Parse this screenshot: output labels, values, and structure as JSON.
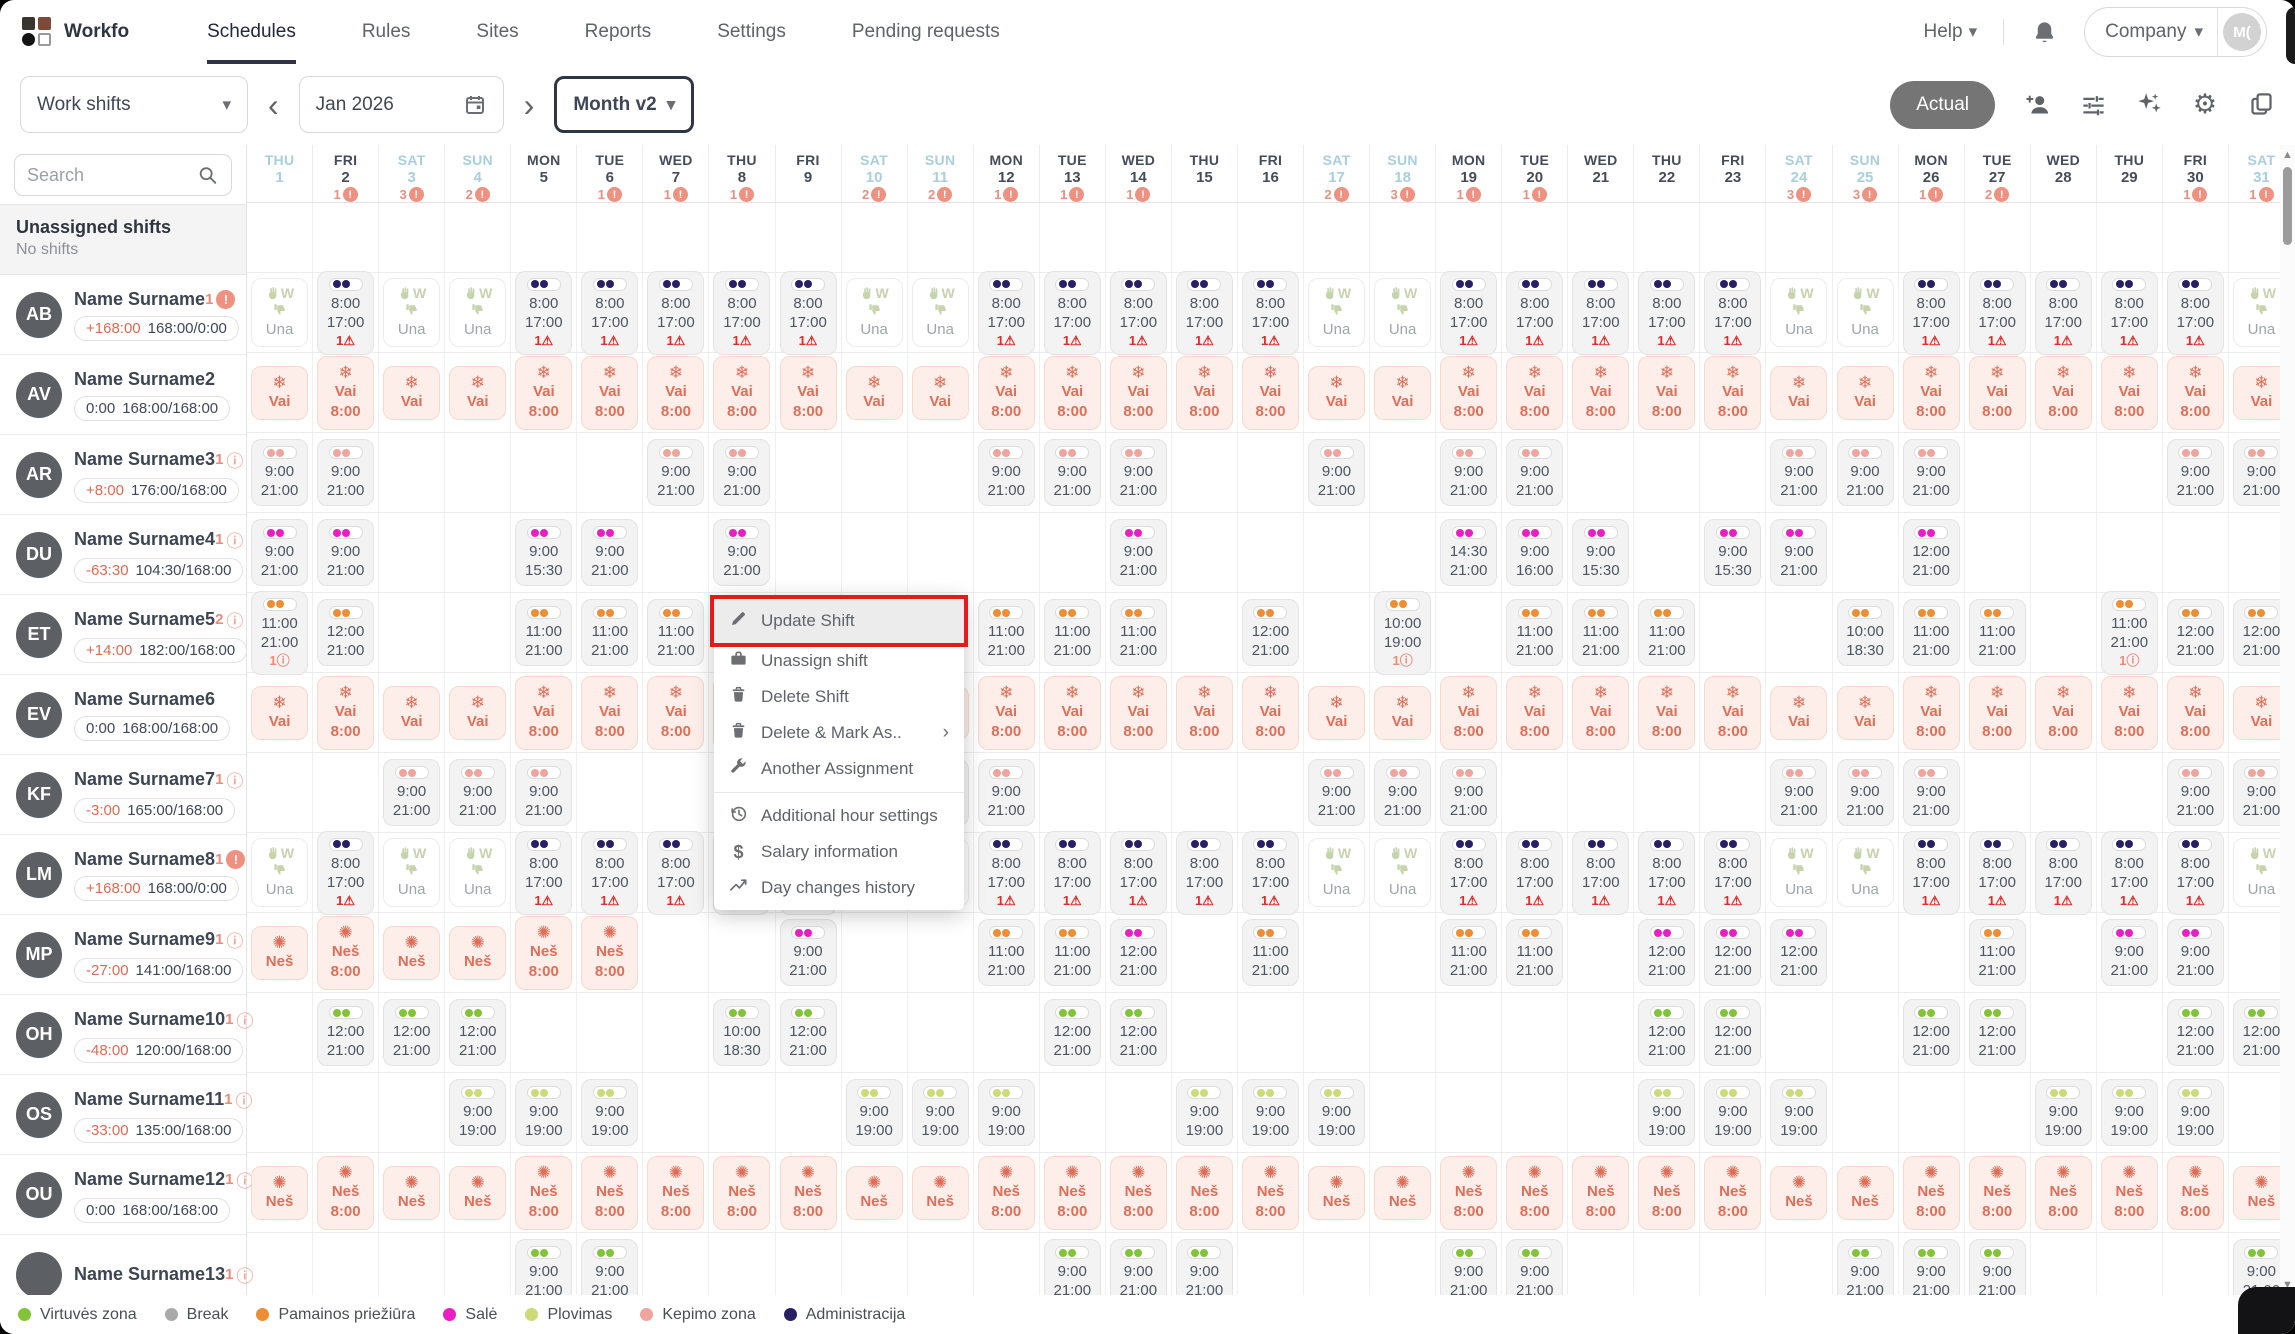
{
  "nav": {
    "brand": "Workfo",
    "items": [
      {
        "label": "Schedules",
        "active": true
      },
      {
        "label": "Rules",
        "active": false
      },
      {
        "label": "Sites",
        "active": false
      },
      {
        "label": "Reports",
        "active": false
      },
      {
        "label": "Settings",
        "active": false
      },
      {
        "label": "Pending requests",
        "active": false
      }
    ],
    "help_label": "Help",
    "company_label": "Company",
    "avatar_initials": "M("
  },
  "toolbar": {
    "schedule_type": "Work shifts",
    "period": "Jan 2026",
    "view_mode": "Month v2",
    "actual_label": "Actual"
  },
  "sidebar": {
    "search_placeholder": "Search",
    "unassigned_title": "Unassigned shifts",
    "unassigned_sub": "No shifts",
    "employees": [
      {
        "init": "AB",
        "name": "Name Surname",
        "badge": "1",
        "btype": "alert",
        "delta": "+168:00",
        "hours": "168:00/0:00",
        "dred": true
      },
      {
        "init": "AV",
        "name": "Name Surname2",
        "badge": "",
        "btype": "",
        "delta": "0:00",
        "hours": "168:00/168:00",
        "dred": false
      },
      {
        "init": "AR",
        "name": "Name Surname3",
        "badge": "1",
        "btype": "info",
        "delta": "+8:00",
        "hours": "176:00/168:00",
        "dred": true
      },
      {
        "init": "DU",
        "name": "Name Surname4",
        "badge": "1",
        "btype": "info",
        "delta": "-63:30",
        "hours": "104:30/168:00",
        "dred": true
      },
      {
        "init": "ET",
        "name": "Name Surname5",
        "badge": "2",
        "btype": "info",
        "delta": "+14:00",
        "hours": "182:00/168:00",
        "dred": true
      },
      {
        "init": "EV",
        "name": "Name Surname6",
        "badge": "",
        "btype": "",
        "delta": "0:00",
        "hours": "168:00/168:00",
        "dred": false
      },
      {
        "init": "KF",
        "name": "Name Surname7",
        "badge": "1",
        "btype": "info",
        "delta": "-3:00",
        "hours": "165:00/168:00",
        "dred": true
      },
      {
        "init": "LM",
        "name": "Name Surname8",
        "badge": "1",
        "btype": "alert",
        "delta": "+168:00",
        "hours": "168:00/0:00",
        "dred": true
      },
      {
        "init": "MP",
        "name": "Name Surname9",
        "badge": "1",
        "btype": "info",
        "delta": "-27:00",
        "hours": "141:00/168:00",
        "dred": true
      },
      {
        "init": "OH",
        "name": "Name Surname10",
        "badge": "1",
        "btype": "info",
        "delta": "-48:00",
        "hours": "120:00/168:00",
        "dred": true
      },
      {
        "init": "OS",
        "name": "Name Surname11",
        "badge": "1",
        "btype": "info",
        "delta": "-33:00",
        "hours": "135:00/168:00",
        "dred": true
      },
      {
        "init": "OU",
        "name": "Name Surname12",
        "badge": "1",
        "btype": "info",
        "delta": "0:00",
        "hours": "168:00/168:00",
        "dred": false
      },
      {
        "init": "",
        "name": "Name Surname13",
        "badge": "1",
        "btype": "info"
      }
    ]
  },
  "zones": {
    "virtuves": "#82c437",
    "break": "#a9a9a9",
    "pamainos": "#ee8d33",
    "sale": "#e91fc3",
    "plovimas": "#ccdb78",
    "kepimo": "#f0a49e",
    "administracija": "#291f63"
  },
  "strings": {
    "una": "Una",
    "una_w": "W",
    "warn_glyph": "⚠",
    "info_glyph": "ⓘ",
    "snow": "❄",
    "virus": "✺"
  },
  "calendar": {
    "weekend_days": [
      1,
      3,
      4,
      10,
      11,
      17,
      18,
      24,
      25,
      31
    ],
    "days": [
      {
        "n": "1",
        "dow": "THU",
        "warn": null
      },
      {
        "n": "2",
        "dow": "FRI",
        "warn": "1"
      },
      {
        "n": "3",
        "dow": "SAT",
        "warn": "3"
      },
      {
        "n": "4",
        "dow": "SUN",
        "warn": "2"
      },
      {
        "n": "5",
        "dow": "MON",
        "warn": null
      },
      {
        "n": "6",
        "dow": "TUE",
        "warn": "1"
      },
      {
        "n": "7",
        "dow": "WED",
        "warn": "1"
      },
      {
        "n": "8",
        "dow": "THU",
        "warn": "1"
      },
      {
        "n": "9",
        "dow": "FRI",
        "warn": null
      },
      {
        "n": "10",
        "dow": "SAT",
        "warn": "2"
      },
      {
        "n": "11",
        "dow": "SUN",
        "warn": "2"
      },
      {
        "n": "12",
        "dow": "MON",
        "warn": "1"
      },
      {
        "n": "13",
        "dow": "TUE",
        "warn": "1"
      },
      {
        "n": "14",
        "dow": "WED",
        "warn": "1"
      },
      {
        "n": "15",
        "dow": "THU",
        "warn": null
      },
      {
        "n": "16",
        "dow": "FRI",
        "warn": null
      },
      {
        "n": "17",
        "dow": "SAT",
        "warn": "2"
      },
      {
        "n": "18",
        "dow": "SUN",
        "warn": "3"
      },
      {
        "n": "19",
        "dow": "MON",
        "warn": "1"
      },
      {
        "n": "20",
        "dow": "TUE",
        "warn": "1"
      },
      {
        "n": "21",
        "dow": "WED",
        "warn": null
      },
      {
        "n": "22",
        "dow": "THU",
        "warn": null
      },
      {
        "n": "23",
        "dow": "FRI",
        "warn": null
      },
      {
        "n": "24",
        "dow": "SAT",
        "warn": "3"
      },
      {
        "n": "25",
        "dow": "SUN",
        "warn": "3"
      },
      {
        "n": "26",
        "dow": "MON",
        "warn": "1"
      },
      {
        "n": "27",
        "dow": "TUE",
        "warn": "2"
      },
      {
        "n": "28",
        "dow": "WED",
        "warn": null
      },
      {
        "n": "29",
        "dow": "THU",
        "warn": null
      },
      {
        "n": "30",
        "dow": "FRI",
        "warn": "1"
      },
      {
        "n": "31",
        "dow": "SAT",
        "warn": "1"
      }
    ],
    "rows": [
      {
        "kind": "pattern",
        "weekday": {
          "t": "w",
          "z": "administracija",
          "s": "8:00",
          "e": "17:00",
          "warn": "1"
        },
        "weekend": {
          "t": "u"
        }
      },
      {
        "kind": "pattern",
        "weekday": {
          "t": "a",
          "l": "Vai",
          "icon": "snow",
          "x": "8:00"
        },
        "weekend": {
          "t": "a",
          "l": "Vai",
          "icon": "snow"
        }
      },
      {
        "kind": "days",
        "cell": {
          "t": "w",
          "z": "kepimo",
          "s": "9:00",
          "e": "21:00"
        },
        "days": [
          1,
          2,
          7,
          8,
          12,
          13,
          14,
          17,
          19,
          20,
          24,
          25,
          26,
          30,
          31
        ]
      },
      {
        "kind": "map",
        "cells": {
          "1": {
            "t": "w",
            "z": "sale",
            "s": "9:00",
            "e": "21:00"
          },
          "2": {
            "t": "w",
            "z": "sale",
            "s": "9:00",
            "e": "21:00"
          },
          "5": {
            "t": "w",
            "z": "sale",
            "s": "9:00",
            "e": "15:30"
          },
          "6": {
            "t": "w",
            "z": "sale",
            "s": "9:00",
            "e": "21:00"
          },
          "8": {
            "t": "w",
            "z": "sale",
            "s": "9:00",
            "e": "21:00"
          },
          "14": {
            "t": "w",
            "z": "sale",
            "s": "9:00",
            "e": "21:00"
          },
          "19": {
            "t": "w",
            "z": "sale",
            "s": "14:30",
            "e": "21:00"
          },
          "20": {
            "t": "w",
            "z": "sale",
            "s": "9:00",
            "e": "16:00"
          },
          "21": {
            "t": "w",
            "z": "sale",
            "s": "9:00",
            "e": "15:30"
          },
          "23": {
            "t": "w",
            "z": "sale",
            "s": "9:00",
            "e": "15:30"
          },
          "24": {
            "t": "w",
            "z": "sale",
            "s": "9:00",
            "e": "21:00"
          },
          "26": {
            "t": "w",
            "z": "sale",
            "s": "12:00",
            "e": "21:00"
          }
        }
      },
      {
        "kind": "map",
        "cells": {
          "1": {
            "t": "w",
            "z": "pamainos",
            "s": "11:00",
            "e": "21:00",
            "b": "1"
          },
          "2": {
            "t": "w",
            "z": "pamainos",
            "s": "12:00",
            "e": "21:00"
          },
          "5": {
            "t": "w",
            "z": "pamainos",
            "s": "11:00",
            "e": "21:00"
          },
          "6": {
            "t": "w",
            "z": "pamainos",
            "s": "11:00",
            "e": "21:00"
          },
          "7": {
            "t": "w",
            "z": "pamainos",
            "s": "11:00",
            "e": "21:00"
          },
          "12": {
            "t": "w",
            "z": "pamainos",
            "s": "11:00",
            "e": "21:00"
          },
          "13": {
            "t": "w",
            "z": "pamainos",
            "s": "11:00",
            "e": "21:00"
          },
          "14": {
            "t": "w",
            "z": "pamainos",
            "s": "11:00",
            "e": "21:00"
          },
          "16": {
            "t": "w",
            "z": "pamainos",
            "s": "12:00",
            "e": "21:00"
          },
          "18": {
            "t": "w",
            "z": "pamainos",
            "s": "10:00",
            "e": "19:00",
            "b": "1"
          },
          "20": {
            "t": "w",
            "z": "pamainos",
            "s": "11:00",
            "e": "21:00"
          },
          "21": {
            "t": "w",
            "z": "pamainos",
            "s": "11:00",
            "e": "21:00"
          },
          "22": {
            "t": "w",
            "z": "pamainos",
            "s": "11:00",
            "e": "21:00"
          },
          "25": {
            "t": "w",
            "z": "pamainos",
            "s": "10:00",
            "e": "18:30"
          },
          "26": {
            "t": "w",
            "z": "pamainos",
            "s": "11:00",
            "e": "21:00"
          },
          "27": {
            "t": "w",
            "z": "pamainos",
            "s": "11:00",
            "e": "21:00"
          },
          "29": {
            "t": "w",
            "z": "pamainos",
            "s": "11:00",
            "e": "21:00",
            "b": "1"
          },
          "30": {
            "t": "w",
            "z": "pamainos",
            "s": "12:00",
            "e": "21:00"
          },
          "31": {
            "t": "w",
            "z": "pamainos",
            "s": "12:00",
            "e": "21:00"
          }
        }
      },
      {
        "kind": "pattern",
        "weekday": {
          "t": "a",
          "l": "Vai",
          "icon": "snow",
          "x": "8:00"
        },
        "weekend": {
          "t": "a",
          "l": "Vai",
          "icon": "snow"
        }
      },
      {
        "kind": "days",
        "cell": {
          "t": "w",
          "z": "kepimo",
          "s": "9:00",
          "e": "21:00"
        },
        "days": [
          3,
          4,
          5,
          10,
          11,
          12,
          17,
          18,
          19,
          24,
          25,
          26,
          30,
          31
        ]
      },
      {
        "kind": "pattern",
        "weekday": {
          "t": "w",
          "z": "administracija",
          "s": "8:00",
          "e": "17:00",
          "warn": "1"
        },
        "weekend": {
          "t": "u"
        }
      },
      {
        "kind": "map",
        "cells": {
          "1": {
            "t": "a",
            "l": "Neš",
            "icon": "virus"
          },
          "2": {
            "t": "a",
            "l": "Neš",
            "icon": "virus",
            "x": "8:00"
          },
          "3": {
            "t": "a",
            "l": "Neš",
            "icon": "virus"
          },
          "4": {
            "t": "a",
            "l": "Neš",
            "icon": "virus"
          },
          "5": {
            "t": "a",
            "l": "Neš",
            "icon": "virus",
            "x": "8:00"
          },
          "6": {
            "t": "a",
            "l": "Neš",
            "icon": "virus",
            "x": "8:00"
          },
          "9": {
            "t": "w",
            "z": "sale",
            "s": "9:00",
            "e": "21:00"
          },
          "12": {
            "t": "w",
            "z": "pamainos",
            "s": "11:00",
            "e": "21:00"
          },
          "13": {
            "t": "w",
            "z": "pamainos",
            "s": "11:00",
            "e": "21:00"
          },
          "14": {
            "t": "w",
            "z": "sale",
            "s": "12:00",
            "e": "21:00"
          },
          "16": {
            "t": "w",
            "z": "pamainos",
            "s": "11:00",
            "e": "21:00"
          },
          "19": {
            "t": "w",
            "z": "pamainos",
            "s": "11:00",
            "e": "21:00"
          },
          "20": {
            "t": "w",
            "z": "pamainos",
            "s": "11:00",
            "e": "21:00"
          },
          "22": {
            "t": "w",
            "z": "sale",
            "s": "12:00",
            "e": "21:00"
          },
          "23": {
            "t": "w",
            "z": "sale",
            "s": "12:00",
            "e": "21:00"
          },
          "24": {
            "t": "w",
            "z": "sale",
            "s": "12:00",
            "e": "21:00"
          },
          "27": {
            "t": "w",
            "z": "pamainos",
            "s": "11:00",
            "e": "21:00"
          },
          "29": {
            "t": "w",
            "z": "sale",
            "s": "9:00",
            "e": "21:00"
          },
          "30": {
            "t": "w",
            "z": "sale",
            "s": "9:00",
            "e": "21:00"
          }
        }
      },
      {
        "kind": "map",
        "cells": {
          "2": {
            "t": "w",
            "z": "virtuves",
            "s": "12:00",
            "e": "21:00"
          },
          "3": {
            "t": "w",
            "z": "virtuves",
            "s": "12:00",
            "e": "21:00"
          },
          "4": {
            "t": "w",
            "z": "virtuves",
            "s": "12:00",
            "e": "21:00"
          },
          "8": {
            "t": "w",
            "z": "virtuves",
            "s": "10:00",
            "e": "18:30"
          },
          "9": {
            "t": "w",
            "z": "virtuves",
            "s": "12:00",
            "e": "21:00"
          },
          "13": {
            "t": "w",
            "z": "virtuves",
            "s": "12:00",
            "e": "21:00"
          },
          "14": {
            "t": "w",
            "z": "virtuves",
            "s": "12:00",
            "e": "21:00"
          },
          "22": {
            "t": "w",
            "z": "virtuves",
            "s": "12:00",
            "e": "21:00"
          },
          "23": {
            "t": "w",
            "z": "virtuves",
            "s": "12:00",
            "e": "21:00"
          },
          "26": {
            "t": "w",
            "z": "virtuves",
            "s": "12:00",
            "e": "21:00"
          },
          "27": {
            "t": "w",
            "z": "virtuves",
            "s": "12:00",
            "e": "21:00"
          },
          "30": {
            "t": "w",
            "z": "virtuves",
            "s": "12:00",
            "e": "21:00"
          },
          "31": {
            "t": "w",
            "z": "virtuves",
            "s": "12:00",
            "e": "21:00"
          }
        }
      },
      {
        "kind": "days",
        "cell": {
          "t": "w",
          "z": "plovimas",
          "s": "9:00",
          "e": "19:00"
        },
        "days": [
          4,
          5,
          6,
          10,
          11,
          12,
          15,
          16,
          17,
          22,
          23,
          24,
          28,
          29,
          30
        ]
      },
      {
        "kind": "pattern",
        "weekday": {
          "t": "a",
          "l": "Neš",
          "icon": "virus",
          "x": "8:00"
        },
        "weekend": {
          "t": "a",
          "l": "Neš",
          "icon": "virus"
        }
      },
      {
        "kind": "days",
        "cell": {
          "t": "w",
          "z": "virtuves",
          "s": "9:00",
          "e": "21:00"
        },
        "days": [
          5,
          6,
          13,
          14,
          15,
          19,
          20,
          25,
          26,
          27,
          31
        ]
      }
    ]
  },
  "menu": {
    "divider_after": 4,
    "items": [
      {
        "label": "Update Shift",
        "icon": "pencil",
        "highlighted": true
      },
      {
        "label": "Unassign shift",
        "icon": "briefcase"
      },
      {
        "label": "Delete Shift",
        "icon": "trash"
      },
      {
        "label": "Delete & Mark As..",
        "icon": "trash",
        "submenu": true
      },
      {
        "label": "Another Assignment",
        "icon": "wrench"
      },
      {
        "label": "Additional hour settings",
        "icon": "history"
      },
      {
        "label": "Salary information",
        "icon": "dollar"
      },
      {
        "label": "Day changes history",
        "icon": "trend"
      }
    ]
  },
  "legend": [
    {
      "label": "Virtuvės zona",
      "color": "#82c437"
    },
    {
      "label": "Break",
      "color": "#a9a9a9"
    },
    {
      "label": "Pamainos priežiūra",
      "color": "#ee8d33"
    },
    {
      "label": "Salė",
      "color": "#e91fc3"
    },
    {
      "label": "Plovimas",
      "color": "#ccdb78"
    },
    {
      "label": "Kepimo zona",
      "color": "#f0a49e"
    },
    {
      "label": "Administracija",
      "color": "#291f63"
    }
  ]
}
